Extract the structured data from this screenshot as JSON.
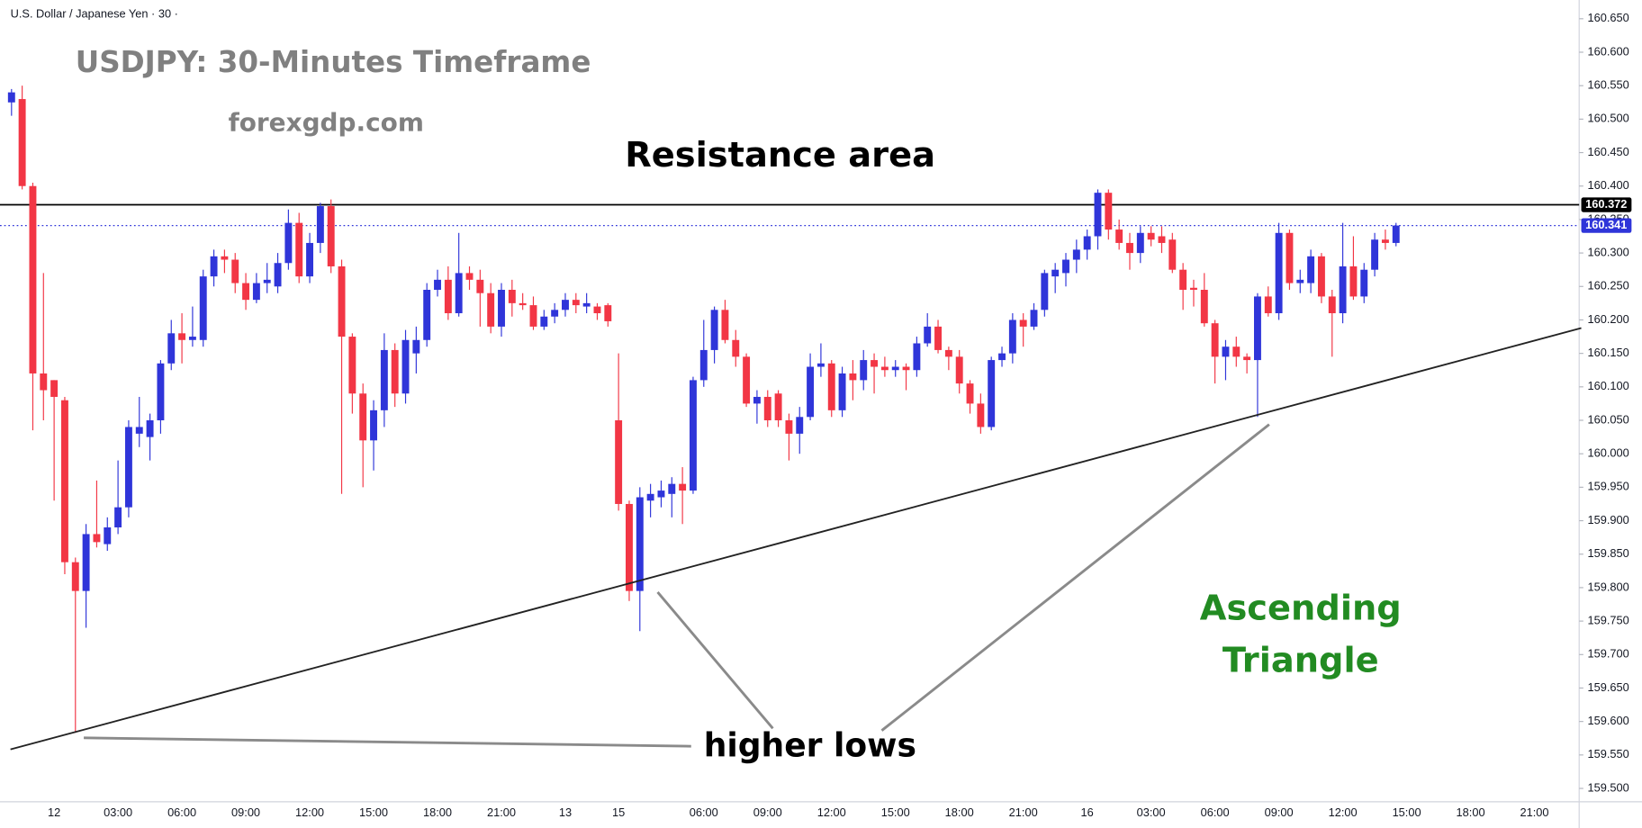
{
  "chart_data": {
    "type": "candlestick",
    "symbol": "U.S. Dollar / Japanese Yen · 30 ·",
    "title": "USDJPY: 30-Minutes Timeframe",
    "subtitle": "forexgdp.com",
    "annotations": [
      "Resistance area",
      "Ascending",
      "Triangle",
      "higher lows"
    ],
    "up_color": "#2f35d9",
    "down_color": "#f23645",
    "grid": false,
    "categories": [
      null,
      null,
      null,
      null,
      "12",
      null,
      null,
      null,
      null,
      null,
      "03:00",
      null,
      null,
      null,
      null,
      null,
      "06:00",
      null,
      null,
      null,
      null,
      null,
      "09:00",
      null,
      null,
      null,
      null,
      null,
      "12:00",
      null,
      null,
      null,
      null,
      null,
      "15:00",
      null,
      null,
      null,
      null,
      null,
      "18:00",
      null,
      null,
      null,
      null,
      null,
      "21:00",
      null,
      null,
      null,
      null,
      null,
      "13",
      null,
      null,
      null,
      null,
      "15",
      null,
      null,
      null,
      null,
      null,
      null,
      null,
      "06:00",
      null,
      null,
      null,
      null,
      null,
      "09:00",
      null,
      null,
      null,
      null,
      null,
      "12:00",
      null,
      null,
      null,
      null,
      null,
      "15:00",
      null,
      null,
      null,
      null,
      null,
      "18:00",
      null,
      null,
      null,
      null,
      null,
      "21:00",
      null,
      null,
      null,
      null,
      null,
      "16",
      null,
      null,
      null,
      null,
      null,
      "03:00",
      null,
      null,
      null,
      null,
      null,
      "06:00",
      null,
      null,
      null,
      null,
      null,
      "09:00",
      null,
      null,
      null,
      null,
      null,
      "12:00",
      null,
      null,
      null,
      null,
      null,
      "15:00",
      null,
      null,
      null,
      null,
      null,
      "18:00",
      null,
      null,
      null,
      null,
      null,
      "21:00",
      null,
      null,
      null
    ],
    "open": [
      160.525,
      160.53,
      160.4,
      160.12,
      160.11,
      160.08,
      159.838,
      159.795,
      159.88,
      159.865,
      159.89,
      159.92,
      160.03,
      160.025,
      160.05,
      160.135,
      160.18,
      160.17,
      160.17,
      160.265,
      160.295,
      160.29,
      160.255,
      160.23,
      160.255,
      160.25,
      160.285,
      160.345,
      160.265,
      160.315,
      160.37,
      160.28,
      160.175,
      160.09,
      160.02,
      160.065,
      160.155,
      160.09,
      160.15,
      160.17,
      160.245,
      160.26,
      160.21,
      160.27,
      160.26,
      160.24,
      160.19,
      160.245,
      160.225,
      160.222,
      160.19,
      160.205,
      160.215,
      160.23,
      160.22,
      160.22,
      160.222,
      160.05,
      159.925,
      159.795,
      159.93,
      159.935,
      159.94,
      159.955,
      159.945,
      160.11,
      160.155,
      160.215,
      160.17,
      160.145,
      160.075,
      160.085,
      160.09,
      160.05,
      160.03,
      160.055,
      160.13,
      160.135,
      160.065,
      160.12,
      160.11,
      160.14,
      160.13,
      160.125,
      160.13,
      160.125,
      160.165,
      160.19,
      160.155,
      160.145,
      160.105,
      160.075,
      160.04,
      160.14,
      160.15,
      160.2,
      160.19,
      160.215,
      160.265,
      160.27,
      160.29,
      160.305,
      160.325,
      160.39,
      160.335,
      160.315,
      160.3,
      160.33,
      160.325,
      160.32,
      160.275,
      160.248,
      160.245,
      160.195,
      160.145,
      160.16,
      160.145,
      160.14,
      160.235,
      160.21,
      160.33,
      160.255,
      160.255,
      160.295,
      160.235,
      160.21,
      160.28,
      160.235,
      160.275,
      160.32,
      160.315,
      null,
      null,
      null,
      null,
      null,
      null,
      null,
      null,
      null,
      null,
      null,
      null,
      null,
      null,
      null,
      null
    ],
    "high": [
      160.545,
      160.55,
      160.405,
      160.27,
      160.11,
      160.085,
      159.845,
      159.895,
      159.96,
      159.905,
      159.99,
      160.05,
      160.085,
      160.06,
      160.14,
      160.2,
      160.21,
      160.22,
      160.275,
      160.305,
      160.305,
      160.3,
      160.27,
      160.27,
      160.285,
      160.3,
      160.365,
      160.36,
      160.33,
      160.375,
      160.38,
      160.29,
      160.18,
      160.105,
      160.08,
      160.18,
      160.165,
      160.185,
      160.19,
      160.255,
      160.275,
      160.28,
      160.33,
      160.28,
      160.275,
      160.255,
      160.255,
      160.26,
      160.24,
      160.235,
      160.215,
      160.225,
      160.24,
      160.24,
      160.24,
      160.225,
      160.225,
      160.15,
      159.93,
      159.95,
      159.955,
      159.96,
      159.965,
      159.98,
      160.115,
      160.2,
      160.22,
      160.23,
      160.185,
      160.15,
      160.095,
      160.095,
      160.095,
      160.06,
      160.07,
      160.15,
      160.165,
      160.14,
      160.13,
      160.14,
      160.155,
      160.15,
      160.145,
      160.14,
      160.135,
      160.175,
      160.21,
      160.2,
      160.16,
      160.155,
      160.11,
      160.09,
      160.145,
      160.16,
      160.21,
      160.21,
      160.225,
      160.275,
      160.285,
      160.3,
      160.32,
      160.335,
      160.395,
      160.395,
      160.35,
      160.33,
      160.34,
      160.34,
      160.34,
      160.33,
      160.285,
      160.26,
      160.27,
      160.2,
      160.17,
      160.175,
      160.15,
      160.24,
      160.25,
      160.345,
      160.335,
      160.275,
      160.305,
      160.3,
      160.245,
      160.345,
      160.325,
      160.285,
      160.33,
      160.335,
      160.345,
      null,
      null,
      null,
      null,
      null,
      null,
      null,
      null,
      null,
      null,
      null,
      null,
      null,
      null,
      null,
      null
    ],
    "low": [
      160.505,
      160.395,
      160.035,
      160.05,
      159.93,
      159.82,
      159.583,
      159.74,
      159.86,
      159.855,
      159.88,
      159.905,
      160.01,
      159.99,
      160.03,
      160.125,
      160.135,
      160.16,
      160.16,
      160.25,
      160.27,
      160.24,
      160.215,
      160.225,
      160.24,
      160.24,
      160.275,
      160.255,
      160.255,
      160.3,
      160.27,
      159.94,
      160.06,
      159.95,
      159.975,
      160.04,
      160.07,
      160.075,
      160.12,
      160.16,
      160.235,
      160.2,
      160.205,
      160.245,
      160.19,
      160.18,
      160.175,
      160.205,
      160.215,
      160.185,
      160.185,
      160.195,
      160.205,
      160.21,
      160.21,
      160.2,
      160.19,
      159.915,
      159.78,
      159.735,
      159.905,
      159.92,
      159.905,
      159.895,
      159.94,
      160.1,
      160.135,
      160.165,
      160.13,
      160.07,
      160.045,
      160.04,
      160.04,
      159.99,
      160.0,
      160.05,
      160.115,
      160.055,
      160.055,
      160.08,
      160.095,
      160.09,
      160.115,
      160.115,
      160.095,
      160.115,
      160.16,
      160.15,
      160.125,
      160.09,
      160.06,
      160.03,
      160.035,
      160.13,
      160.135,
      160.16,
      160.185,
      160.205,
      160.24,
      160.25,
      160.27,
      160.29,
      160.305,
      160.32,
      160.305,
      160.275,
      160.285,
      160.31,
      160.3,
      160.27,
      160.215,
      160.22,
      160.19,
      160.105,
      160.11,
      160.13,
      160.12,
      160.055,
      160.205,
      160.2,
      160.245,
      160.24,
      160.24,
      160.225,
      160.145,
      160.195,
      160.23,
      160.225,
      160.265,
      160.305,
      160.31,
      null,
      null,
      null,
      null,
      null,
      null,
      null,
      null,
      null,
      null,
      null,
      null,
      null,
      null,
      null,
      null
    ],
    "close": [
      160.54,
      160.4,
      160.12,
      160.095,
      160.085,
      159.838,
      159.795,
      159.88,
      159.868,
      159.89,
      159.92,
      160.04,
      160.04,
      160.05,
      160.135,
      160.18,
      160.17,
      160.175,
      160.265,
      160.295,
      160.29,
      160.255,
      160.23,
      160.255,
      160.26,
      160.285,
      160.345,
      160.265,
      160.315,
      160.37,
      160.28,
      160.175,
      160.09,
      160.02,
      160.065,
      160.155,
      160.09,
      160.17,
      160.17,
      160.245,
      160.26,
      160.21,
      160.27,
      160.26,
      160.24,
      160.19,
      160.245,
      160.225,
      160.222,
      160.19,
      160.205,
      160.215,
      160.23,
      160.222,
      160.225,
      160.21,
      160.198,
      159.925,
      159.795,
      159.935,
      159.94,
      159.945,
      159.955,
      159.945,
      160.11,
      160.155,
      160.215,
      160.17,
      160.145,
      160.075,
      160.085,
      160.05,
      160.05,
      160.03,
      160.055,
      160.13,
      160.135,
      160.065,
      160.12,
      160.11,
      160.14,
      160.13,
      160.125,
      160.13,
      160.125,
      160.165,
      160.19,
      160.155,
      160.145,
      160.105,
      160.075,
      160.04,
      160.14,
      160.15,
      160.2,
      160.19,
      160.215,
      160.27,
      160.275,
      160.29,
      160.305,
      160.325,
      160.39,
      160.335,
      160.315,
      160.3,
      160.33,
      160.32,
      160.315,
      160.275,
      160.245,
      160.245,
      160.195,
      160.145,
      160.16,
      160.145,
      160.14,
      160.235,
      160.21,
      160.33,
      160.255,
      160.26,
      160.295,
      160.235,
      160.21,
      160.28,
      160.235,
      160.275,
      160.32,
      160.315,
      160.341,
      null,
      null,
      null,
      null,
      null,
      null,
      null,
      null,
      null,
      null,
      null,
      null,
      null,
      null,
      null,
      null
    ],
    "hlines": [
      {
        "value": 160.372,
        "color": "#000000",
        "style": "solid"
      },
      {
        "value": 160.341,
        "color": "#2f35d9",
        "style": "dotted"
      }
    ],
    "ylim": [
      159.48,
      160.678
    ],
    "yticks": [
      {
        "value": 160.65,
        "label": "160.650"
      },
      {
        "value": 160.6,
        "label": "160.600"
      },
      {
        "value": 160.55,
        "label": "160.550"
      },
      {
        "value": 160.5,
        "label": "160.500"
      },
      {
        "value": 160.45,
        "label": "160.450"
      },
      {
        "value": 160.4,
        "label": "160.400"
      },
      {
        "value": 160.35,
        "label": "160.350"
      },
      {
        "value": 160.3,
        "label": "160.300"
      },
      {
        "value": 160.25,
        "label": "160.250"
      },
      {
        "value": 160.2,
        "label": "160.200"
      },
      {
        "value": 160.15,
        "label": "160.150"
      },
      {
        "value": 160.1,
        "label": "160.100"
      },
      {
        "value": 160.05,
        "label": "160.050"
      },
      {
        "value": 160.0,
        "label": "160.000"
      },
      {
        "value": 159.95,
        "label": "159.950"
      },
      {
        "value": 159.9,
        "label": "159.900"
      },
      {
        "value": 159.85,
        "label": "159.850"
      },
      {
        "value": 159.8,
        "label": "159.800"
      },
      {
        "value": 159.75,
        "label": "159.750"
      },
      {
        "value": 159.7,
        "label": "159.700"
      },
      {
        "value": 159.65,
        "label": "159.650"
      },
      {
        "value": 159.6,
        "label": "159.600"
      },
      {
        "value": 159.55,
        "label": "159.550"
      },
      {
        "value": 159.5,
        "label": "159.500"
      }
    ]
  }
}
